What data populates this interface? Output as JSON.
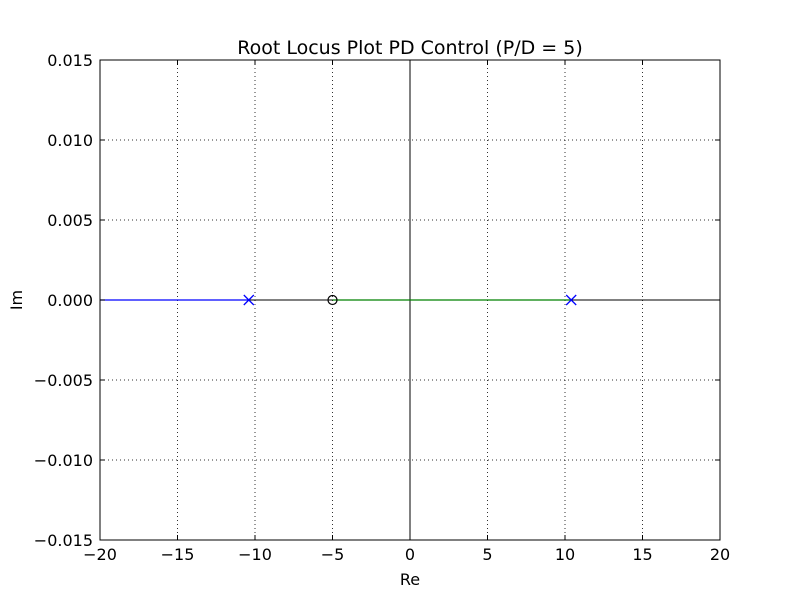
{
  "chart_data": {
    "type": "line",
    "title": "Root Locus Plot PD Control (P/D = 5)",
    "xlabel": "Re",
    "ylabel": "Im",
    "xlim": [
      -20,
      20
    ],
    "ylim": [
      -0.015,
      0.015
    ],
    "xticks": [
      -20,
      -15,
      -10,
      -5,
      0,
      5,
      10,
      15,
      20
    ],
    "xtick_labels": [
      "−20",
      "−15",
      "−10",
      "−5",
      "0",
      "5",
      "10",
      "15",
      "20"
    ],
    "yticks": [
      -0.015,
      -0.01,
      -0.005,
      0.0,
      0.005,
      0.01,
      0.015
    ],
    "ytick_labels": [
      "−0.015",
      "−0.010",
      "−0.005",
      "0.000",
      "0.005",
      "0.010",
      "0.015"
    ],
    "grid": true,
    "series": [
      {
        "color": "#0000ff",
        "points": [
          [
            -20,
            0
          ],
          [
            -10.4,
            0
          ]
        ]
      },
      {
        "color": "#008000",
        "points": [
          [
            -5,
            0
          ],
          [
            10.4,
            0
          ]
        ]
      }
    ],
    "poles": [
      {
        "x": -10.4,
        "y": 0,
        "color": "#0000ff"
      },
      {
        "x": 10.4,
        "y": 0,
        "color": "#0000ff"
      }
    ],
    "zeros": [
      {
        "x": -5,
        "y": 0,
        "color": "#000000"
      }
    ],
    "reference_axes": {
      "x0": 0,
      "y0": 0,
      "color": "#000000"
    }
  }
}
